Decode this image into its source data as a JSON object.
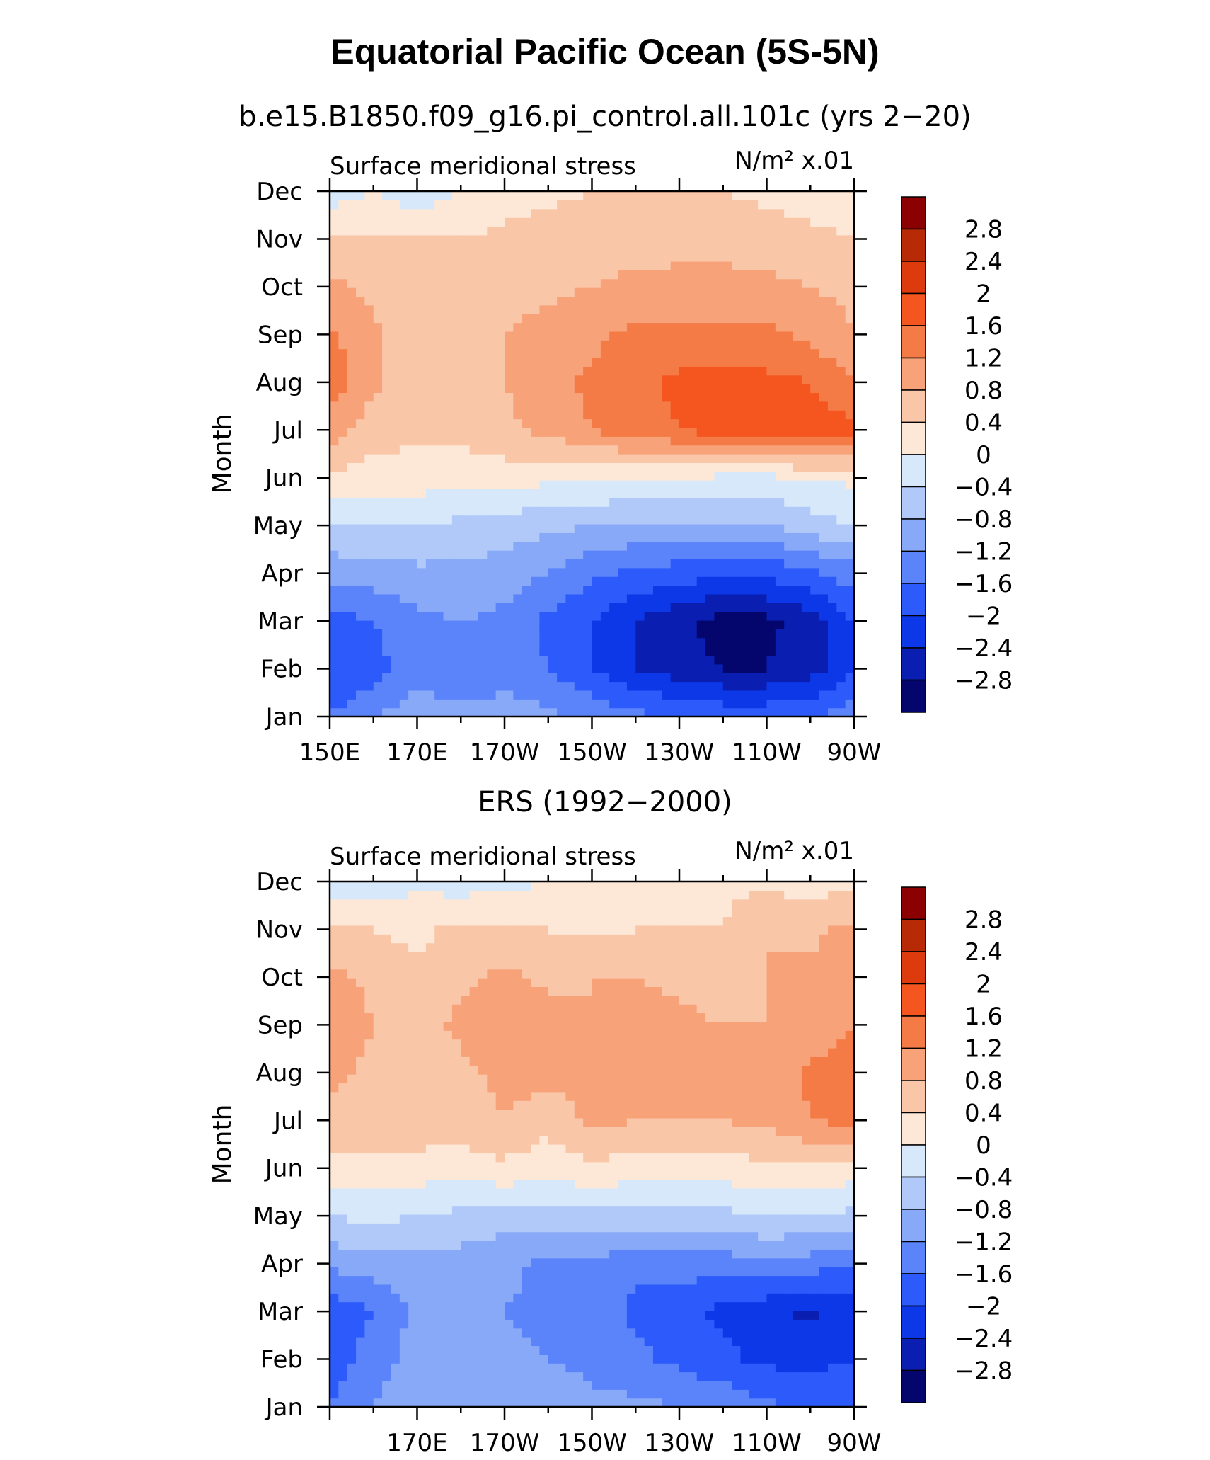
{
  "figure": {
    "title": "Equatorial Pacific Ocean (5S-5N)"
  },
  "colorbar": {
    "labels": [
      "2.8",
      "2.4",
      "2",
      "1.6",
      "1.2",
      "0.8",
      "0.4",
      "0",
      "−0.4",
      "−0.8",
      "−1.2",
      "−1.6",
      "−2",
      "−2.4",
      "−2.8"
    ],
    "colors": [
      "#8b0000",
      "#b82a06",
      "#dd3a0d",
      "#f5561f",
      "#f47b46",
      "#f8a27a",
      "#fac6a8",
      "#fde8d8",
      "#d6e8fa",
      "#b1c9f8",
      "#88a8f8",
      "#5b84fa",
      "#2d5bfb",
      "#0c38e8",
      "#0a1fb2",
      "#04066d"
    ]
  },
  "chart_data": [
    {
      "type": "heatmap",
      "title": "b.e15.B1850.f09_g16.pi_control.all.101c (yrs 2−20)",
      "left_label": "Surface meridional stress",
      "right_label": "N/m² x.01",
      "ylabel": "Month",
      "xlabel": "",
      "y_ticks": [
        "Jan",
        "Feb",
        "Mar",
        "Apr",
        "May",
        "Jun",
        "Jul",
        "Aug",
        "Sep",
        "Oct",
        "Nov",
        "Dec"
      ],
      "x_ticks": [
        "150E",
        "170E",
        "170W",
        "150W",
        "130W",
        "110W",
        "90W"
      ],
      "x": [
        "150E",
        "160E",
        "170E",
        "180",
        "170W",
        "160W",
        "150W",
        "140W",
        "130W",
        "120W",
        "110W",
        "100W",
        "90W"
      ],
      "y": [
        "Jan",
        "Feb",
        "Mar",
        "Apr",
        "May",
        "Jun",
        "Jul",
        "Aug",
        "Sep",
        "Oct",
        "Nov",
        "Dec"
      ],
      "z": [
        [
          -1.6,
          -1.2,
          -1.0,
          -1.0,
          -1.0,
          -1.1,
          -1.3,
          -1.5,
          -1.6,
          -1.7,
          -1.7,
          -1.6,
          -1.4
        ],
        [
          -2.0,
          -1.8,
          -1.3,
          -1.6,
          -1.4,
          -1.6,
          -2.0,
          -2.4,
          -2.6,
          -2.8,
          -2.8,
          -2.6,
          -2.0
        ],
        [
          -1.8,
          -1.6,
          -1.3,
          -1.2,
          -1.3,
          -1.7,
          -2.0,
          -2.4,
          -2.7,
          -3.0,
          -2.9,
          -2.6,
          -2.0
        ],
        [
          -1.0,
          -1.0,
          -0.9,
          -0.9,
          -1.0,
          -1.2,
          -1.5,
          -1.7,
          -1.8,
          -1.9,
          -1.9,
          -1.7,
          -1.4
        ],
        [
          -0.5,
          -0.4,
          -0.4,
          -0.5,
          -0.6,
          -0.7,
          -0.8,
          -0.9,
          -0.9,
          -0.9,
          -0.8,
          -0.6,
          -0.4
        ],
        [
          0.3,
          0.2,
          0.2,
          0.2,
          0.2,
          0.1,
          0.1,
          0.0,
          0.0,
          -0.1,
          -0.1,
          0.0,
          0.1
        ],
        [
          1.0,
          0.6,
          0.5,
          0.5,
          0.7,
          0.9,
          1.2,
          1.4,
          1.6,
          1.8,
          1.9,
          1.9,
          1.7
        ],
        [
          1.4,
          0.9,
          0.5,
          0.6,
          0.8,
          1.1,
          1.3,
          1.5,
          1.7,
          1.8,
          1.7,
          1.6,
          1.2
        ],
        [
          1.3,
          0.9,
          0.5,
          0.5,
          0.8,
          1.0,
          1.1,
          1.3,
          1.3,
          1.3,
          1.3,
          1.1,
          0.8
        ],
        [
          0.9,
          0.7,
          0.5,
          0.5,
          0.6,
          0.7,
          0.8,
          0.9,
          0.9,
          0.9,
          0.9,
          0.8,
          0.7
        ],
        [
          0.4,
          0.4,
          0.4,
          0.4,
          0.5,
          0.6,
          0.6,
          0.6,
          0.7,
          0.7,
          0.6,
          0.5,
          0.4
        ],
        [
          -0.2,
          0.0,
          -0.3,
          0.0,
          0.2,
          0.3,
          0.4,
          0.4,
          0.4,
          0.4,
          0.3,
          0.2,
          0.2
        ]
      ],
      "levels": [
        -2.8,
        -2.4,
        -2.0,
        -1.6,
        -1.2,
        -0.8,
        -0.4,
        0.0,
        0.4,
        0.8,
        1.2,
        1.6,
        2.0,
        2.4,
        2.8
      ]
    },
    {
      "type": "heatmap",
      "title": "ERS (1992−2000)",
      "left_label": "Surface meridional stress",
      "right_label": "N/m² x.01",
      "ylabel": "Month",
      "xlabel": "",
      "y_ticks": [
        "Jan",
        "Feb",
        "Mar",
        "Apr",
        "May",
        "Jun",
        "Jul",
        "Aug",
        "Sep",
        "Oct",
        "Nov",
        "Dec"
      ],
      "x_ticks": [
        "170E",
        "170W",
        "150W",
        "130W",
        "110W",
        "90W"
      ],
      "x": [
        "150E",
        "160E",
        "170E",
        "180",
        "170W",
        "160W",
        "150W",
        "140W",
        "130W",
        "120W",
        "110W",
        "100W",
        "90W"
      ],
      "y": [
        "Jan",
        "Feb",
        "Mar",
        "Apr",
        "May",
        "Jun",
        "Jul",
        "Aug",
        "Sep",
        "Oct",
        "Nov",
        "Dec"
      ],
      "z": [
        [
          -1.6,
          -1.2,
          -0.8,
          -1.0,
          -0.8,
          -1.0,
          -1.1,
          -1.1,
          -1.2,
          -1.3,
          -1.5,
          -1.7,
          -1.8
        ],
        [
          -1.8,
          -1.4,
          -1.0,
          -1.2,
          -1.1,
          -1.2,
          -1.3,
          -1.5,
          -1.7,
          -1.9,
          -2.1,
          -2.1,
          -2.0
        ],
        [
          -1.9,
          -1.6,
          -1.1,
          -1.1,
          -1.2,
          -1.3,
          -1.4,
          -1.7,
          -1.9,
          -2.1,
          -2.3,
          -2.5,
          -2.2
        ],
        [
          -1.1,
          -1.0,
          -0.9,
          -1.0,
          -1.1,
          -1.3,
          -1.3,
          -1.5,
          -1.4,
          -1.4,
          -1.3,
          -1.4,
          -1.6
        ],
        [
          -0.4,
          -0.3,
          -0.4,
          -0.5,
          -0.6,
          -0.6,
          -0.5,
          -0.5,
          -0.6,
          -0.5,
          -0.4,
          -0.4,
          -0.5
        ],
        [
          0.2,
          0.3,
          0.2,
          0.2,
          0.3,
          0.2,
          0.3,
          0.2,
          0.2,
          0.2,
          0.3,
          0.3,
          0.2
        ],
        [
          0.7,
          0.6,
          0.7,
          0.6,
          0.8,
          0.5,
          0.9,
          0.8,
          0.8,
          0.8,
          0.9,
          1.2,
          1.3
        ],
        [
          0.9,
          0.7,
          0.6,
          0.7,
          0.9,
          1.0,
          0.9,
          0.9,
          0.9,
          0.8,
          0.9,
          1.3,
          1.4
        ],
        [
          1.2,
          0.8,
          0.6,
          0.9,
          1.0,
          1.0,
          0.8,
          1.0,
          0.9,
          0.8,
          0.8,
          0.9,
          1.2
        ],
        [
          0.9,
          0.7,
          0.5,
          0.7,
          0.9,
          0.7,
          0.8,
          0.8,
          0.7,
          0.6,
          0.8,
          0.9,
          1.2
        ],
        [
          0.5,
          0.4,
          0.3,
          0.5,
          0.4,
          0.4,
          0.3,
          0.4,
          0.4,
          0.4,
          0.8,
          0.7,
          0.9
        ],
        [
          -0.3,
          -0.2,
          -0.1,
          -0.2,
          -0.1,
          0.0,
          0.1,
          0.1,
          0.2,
          0.3,
          0.3,
          0.2,
          0.3
        ]
      ],
      "levels": [
        -2.8,
        -2.4,
        -2.0,
        -1.6,
        -1.2,
        -0.8,
        -0.4,
        0.0,
        0.4,
        0.8,
        1.2,
        1.6,
        2.0,
        2.4,
        2.8
      ]
    }
  ]
}
